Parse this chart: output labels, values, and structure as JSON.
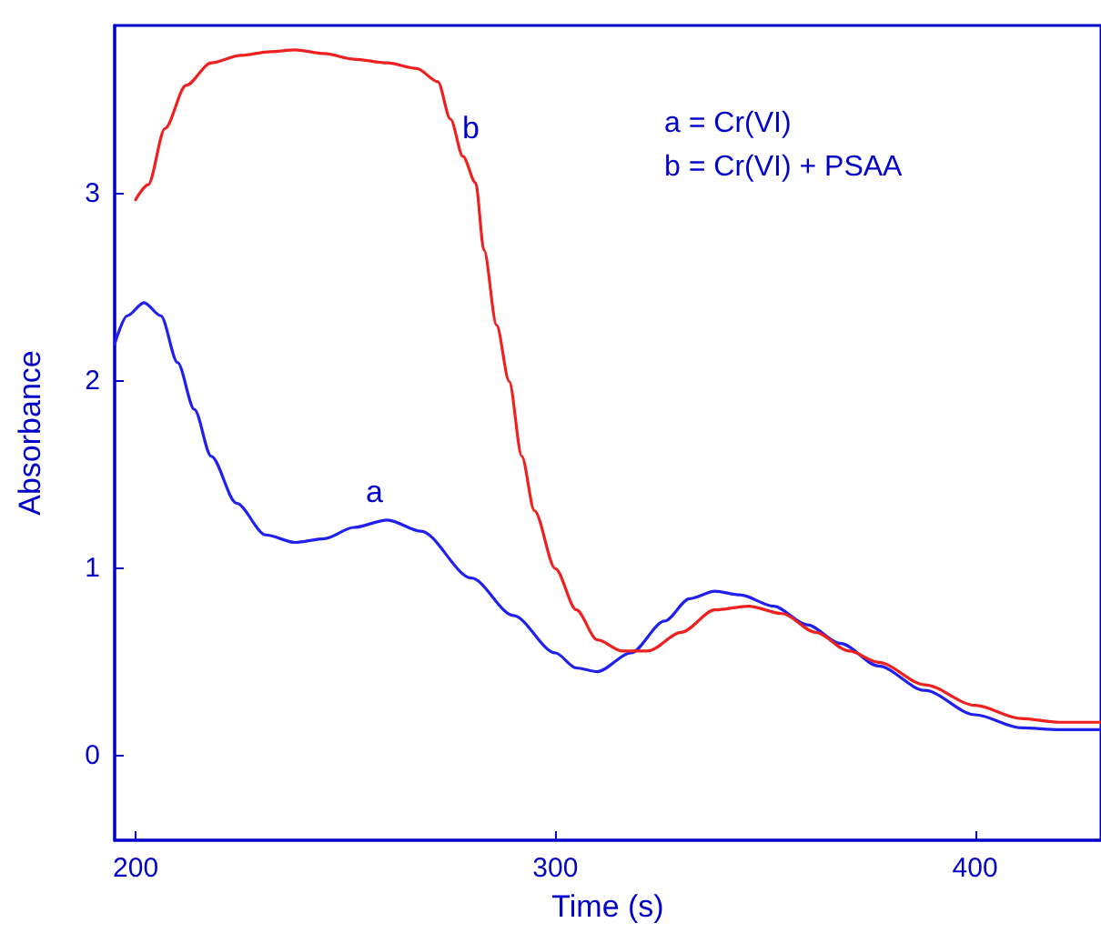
{
  "chart_data": {
    "type": "line",
    "xlabel": "Time (s)",
    "ylabel": "Absorbance",
    "xlim": [
      195,
      430
    ],
    "xticks": [
      200,
      300,
      400
    ],
    "ylim": [
      -0.45,
      3.9
    ],
    "yticks": [
      0,
      1,
      2,
      3
    ],
    "grid": false,
    "marker": "none",
    "line_style": "solid",
    "series": [
      {
        "color": "#2020ee",
        "x": [
          195,
          198,
          202,
          206,
          210,
          214,
          218,
          224,
          231,
          238,
          245,
          252,
          260,
          268,
          280,
          290,
          300,
          305,
          310,
          318,
          326,
          332,
          338,
          344,
          352,
          360,
          368,
          377,
          388,
          400,
          411,
          420,
          430
        ],
        "values": [
          2.2,
          2.35,
          2.42,
          2.35,
          2.1,
          1.85,
          1.6,
          1.35,
          1.18,
          1.14,
          1.16,
          1.22,
          1.26,
          1.2,
          0.95,
          0.75,
          0.55,
          0.47,
          0.45,
          0.55,
          0.72,
          0.84,
          0.88,
          0.86,
          0.8,
          0.7,
          0.6,
          0.48,
          0.35,
          0.22,
          0.15,
          0.14,
          0.14
        ]
      },
      {
        "color": "#ee2020",
        "x": [
          200,
          203,
          207,
          212,
          218,
          225,
          232,
          238,
          245,
          252,
          260,
          267,
          272,
          275,
          278,
          281,
          283,
          286,
          289,
          292,
          295,
          300,
          305,
          310,
          316,
          322,
          330,
          338,
          346,
          354,
          362,
          370,
          377,
          388,
          400,
          411,
          420,
          430
        ],
        "values": [
          2.97,
          3.05,
          3.35,
          3.58,
          3.7,
          3.74,
          3.76,
          3.77,
          3.75,
          3.72,
          3.7,
          3.67,
          3.6,
          3.4,
          3.2,
          3.06,
          2.7,
          2.3,
          2.0,
          1.6,
          1.31,
          1.0,
          0.78,
          0.62,
          0.56,
          0.56,
          0.66,
          0.78,
          0.8,
          0.76,
          0.66,
          0.56,
          0.5,
          0.38,
          0.27,
          0.2,
          0.18,
          0.18
        ]
      }
    ],
    "annotations": [
      "a",
      "b",
      "a = Cr(VI)",
      "b = Cr(VI) + PSAA"
    ]
  }
}
